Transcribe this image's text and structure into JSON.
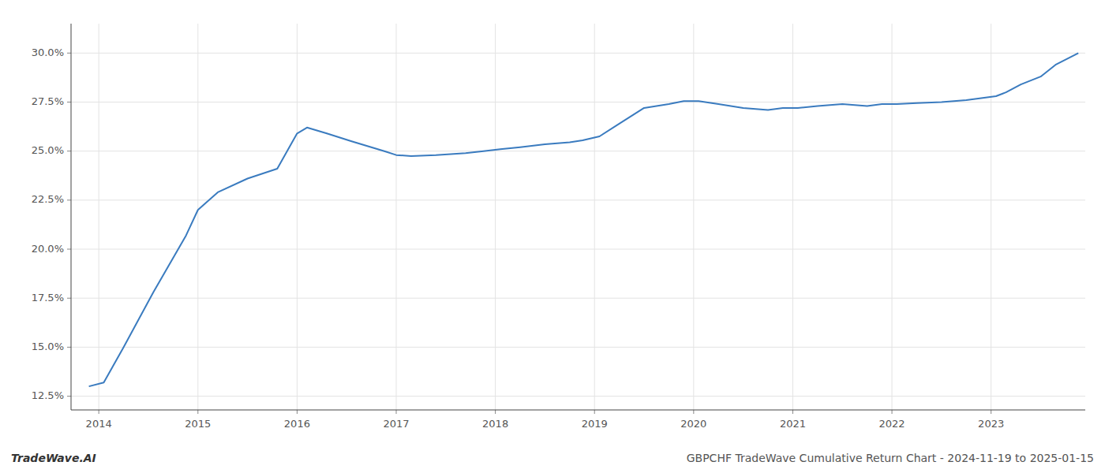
{
  "chart_data": {
    "type": "line",
    "title": "GBPCHF TradeWave Cumulative Return Chart - 2024-11-19 to 2025-01-15",
    "annotations": [
      "TradeWave.AI"
    ],
    "color": "#3a7bbf",
    "x": [
      2013.9,
      2014.05,
      2014.25,
      2014.55,
      2014.88,
      2015.0,
      2015.2,
      2015.5,
      2015.8,
      2016.0,
      2016.1,
      2016.3,
      2016.55,
      2016.88,
      2017.0,
      2017.15,
      2017.4,
      2017.7,
      2017.88,
      2018.05,
      2018.25,
      2018.5,
      2018.75,
      2018.88,
      2019.05,
      2019.25,
      2019.5,
      2019.75,
      2019.9,
      2020.05,
      2020.25,
      2020.5,
      2020.75,
      2020.9,
      2021.05,
      2021.25,
      2021.5,
      2021.75,
      2021.9,
      2022.05,
      2022.25,
      2022.5,
      2022.75,
      2022.9,
      2023.05,
      2023.15,
      2023.3,
      2023.5,
      2023.65,
      2023.88
    ],
    "values": [
      0.13,
      0.132,
      0.15,
      0.178,
      0.207,
      0.22,
      0.229,
      0.236,
      0.241,
      0.259,
      0.262,
      0.259,
      0.255,
      0.25,
      0.248,
      0.2475,
      0.248,
      0.249,
      0.25,
      0.251,
      0.252,
      0.2535,
      0.2545,
      0.2555,
      0.2575,
      0.264,
      0.272,
      0.274,
      0.2755,
      0.2755,
      0.274,
      0.272,
      0.271,
      0.272,
      0.272,
      0.273,
      0.274,
      0.273,
      0.274,
      0.274,
      0.2745,
      0.275,
      0.276,
      0.277,
      0.278,
      0.28,
      0.284,
      0.288,
      0.294,
      0.3
    ],
    "xlim": [
      2013.72,
      2023.95
    ],
    "xticks": [
      2014,
      2015,
      2016,
      2017,
      2018,
      2019,
      2020,
      2021,
      2022,
      2023
    ],
    "ylim": [
      0.118,
      0.315
    ],
    "yticks": [
      {
        "value": 0.125,
        "label": "12.5%"
      },
      {
        "value": 0.15,
        "label": "15.0%"
      },
      {
        "value": 0.175,
        "label": "17.5%"
      },
      {
        "value": 0.2,
        "label": "20.0%"
      },
      {
        "value": 0.225,
        "label": "22.5%"
      },
      {
        "value": 0.25,
        "label": "25.0%"
      },
      {
        "value": 0.275,
        "label": "27.5%"
      },
      {
        "value": 0.3,
        "label": "30.0%"
      }
    ],
    "grid": true
  }
}
